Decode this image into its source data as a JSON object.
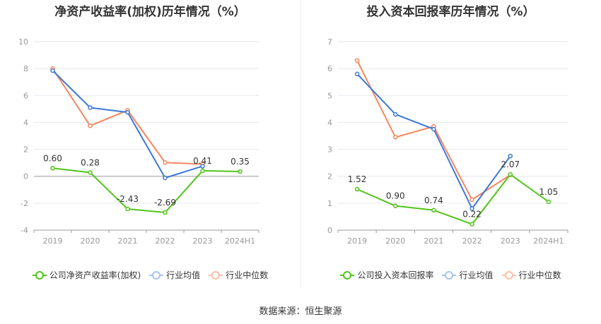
{
  "source": "数据来源：恒生聚源",
  "chart_data": [
    {
      "type": "line",
      "title": "净资产收益率(加权)历年情况（%）",
      "categories": [
        "2019",
        "2020",
        "2021",
        "2022",
        "2023",
        "2024H1"
      ],
      "yticks": [
        "10",
        "8",
        "6",
        "4",
        "2",
        "0",
        "-2",
        "-4"
      ],
      "ylim": [
        -4,
        10
      ],
      "grid": true,
      "legend_position": "bottom",
      "series": [
        {
          "name": "公司净资产收益率(加权)",
          "color": "#52c41a",
          "values": [
            0.6,
            0.28,
            -2.43,
            -2.69,
            0.41,
            0.35
          ],
          "labels": [
            "0.60",
            "0.28",
            "-2.43",
            "-2.69",
            "0.41",
            "0.35"
          ]
        },
        {
          "name": "行业均值",
          "color": "#3c78d8",
          "values": [
            7.85,
            5.1,
            4.75,
            -0.12,
            0.75,
            null
          ]
        },
        {
          "name": "行业中位数",
          "color": "#f4875f",
          "values": [
            8.0,
            3.75,
            4.9,
            1.02,
            0.9,
            null
          ]
        }
      ]
    },
    {
      "type": "line",
      "title": "投入资本回报率历年情况（%）",
      "categories": [
        "2019",
        "2020",
        "2021",
        "2022",
        "2023",
        "2024H1"
      ],
      "yticks": [
        "7",
        "6",
        "5",
        "4",
        "3",
        "2",
        "1",
        "0"
      ],
      "ylim": [
        0,
        7
      ],
      "grid": true,
      "legend_position": "bottom",
      "series": [
        {
          "name": "公司投入资本回报率",
          "color": "#52c41a",
          "values": [
            1.52,
            0.9,
            0.74,
            0.22,
            2.07,
            1.05
          ],
          "labels": [
            "1.52",
            "0.90",
            "0.74",
            "0.22",
            "2.07",
            "1.05"
          ]
        },
        {
          "name": "行业均值",
          "color": "#3c78d8",
          "values": [
            5.8,
            4.3,
            3.75,
            0.8,
            2.75,
            null
          ]
        },
        {
          "name": "行业中位数",
          "color": "#f4875f",
          "values": [
            6.3,
            3.45,
            3.85,
            1.13,
            2.05,
            null
          ]
        }
      ]
    }
  ]
}
